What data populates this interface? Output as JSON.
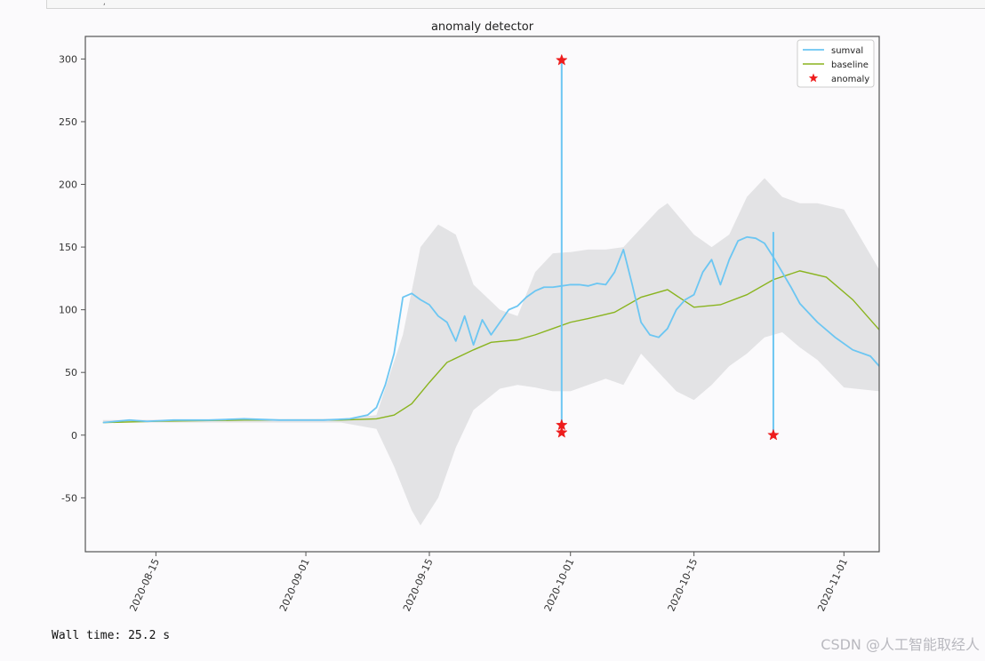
{
  "cell": {
    "output_marker": ","
  },
  "footer": {
    "wall_time": "Wall time: 25.2 s",
    "watermark": "CSDN @人工智能取经人"
  },
  "colors": {
    "series": "#6cc6f2",
    "baseline": "#8ab41f",
    "band": "#e3e3e5",
    "anomaly": "#ee1c1c",
    "axes": "#555555"
  },
  "chart_data": {
    "type": "line",
    "title": "anomaly detector",
    "xlabel": "",
    "ylabel": "",
    "xlim": [
      "2020-08-07",
      "2020-11-05"
    ],
    "ylim": [
      -93,
      318
    ],
    "x_ticks": [
      "2020-08-15",
      "2020-09-01",
      "2020-09-15",
      "2020-10-01",
      "2020-10-15",
      "2020-11-01"
    ],
    "y_ticks": [
      -50,
      0,
      50,
      100,
      150,
      200,
      250,
      300
    ],
    "grid": false,
    "legend": {
      "placement": "top-right",
      "entries": [
        "sumval",
        "baseline",
        "anomaly"
      ]
    },
    "series": [
      {
        "name": "sumval",
        "kind": "line",
        "x": [
          "2020-08-09",
          "2020-08-12",
          "2020-08-14",
          "2020-08-17",
          "2020-08-21",
          "2020-08-25",
          "2020-08-29",
          "2020-09-03",
          "2020-09-06",
          "2020-09-08",
          "2020-09-09",
          "2020-09-10",
          "2020-09-11",
          "2020-09-12",
          "2020-09-13",
          "2020-09-14",
          "2020-09-15",
          "2020-09-16",
          "2020-09-17",
          "2020-09-18",
          "2020-09-19",
          "2020-09-20",
          "2020-09-21",
          "2020-09-22",
          "2020-09-23",
          "2020-09-24",
          "2020-09-25",
          "2020-09-26",
          "2020-09-27",
          "2020-09-28",
          "2020-09-29",
          "2020-09-30",
          "2020-10-01",
          "2020-10-02",
          "2020-10-03",
          "2020-10-04",
          "2020-10-05",
          "2020-10-06",
          "2020-10-07",
          "2020-10-08",
          "2020-10-09",
          "2020-10-10",
          "2020-10-11",
          "2020-10-12",
          "2020-10-13",
          "2020-10-14",
          "2020-10-15",
          "2020-10-16",
          "2020-10-17",
          "2020-10-18",
          "2020-10-19",
          "2020-10-20",
          "2020-10-21",
          "2020-10-22",
          "2020-10-23",
          "2020-10-24",
          "2020-10-25",
          "2020-10-26",
          "2020-10-27",
          "2020-10-29",
          "2020-10-31",
          "2020-11-02",
          "2020-11-04",
          "2020-11-05"
        ],
        "y": [
          10,
          12,
          11,
          12,
          12,
          13,
          12,
          12,
          13,
          16,
          22,
          40,
          65,
          110,
          113,
          108,
          104,
          95,
          90,
          75,
          95,
          72,
          92,
          80,
          90,
          100,
          103,
          110,
          115,
          118,
          118,
          119,
          120,
          120,
          119,
          121,
          120,
          130,
          148,
          120,
          90,
          80,
          78,
          85,
          100,
          108,
          112,
          130,
          140,
          120,
          140,
          155,
          158,
          157,
          153,
          142,
          130,
          118,
          105,
          90,
          78,
          68,
          63,
          55
        ]
      },
      {
        "name": "baseline",
        "kind": "line",
        "x": [
          "2020-08-09",
          "2020-08-15",
          "2020-08-25",
          "2020-09-05",
          "2020-09-09",
          "2020-09-11",
          "2020-09-13",
          "2020-09-15",
          "2020-09-17",
          "2020-09-20",
          "2020-09-22",
          "2020-09-25",
          "2020-09-27",
          "2020-09-29",
          "2020-10-01",
          "2020-10-03",
          "2020-10-06",
          "2020-10-09",
          "2020-10-12",
          "2020-10-15",
          "2020-10-18",
          "2020-10-21",
          "2020-10-24",
          "2020-10-27",
          "2020-10-30",
          "2020-11-02",
          "2020-11-05"
        ],
        "y": [
          10,
          11,
          12,
          12,
          13,
          16,
          25,
          42,
          58,
          68,
          74,
          76,
          80,
          85,
          90,
          93,
          98,
          110,
          116,
          102,
          104,
          112,
          124,
          131,
          126,
          108,
          84
        ]
      },
      {
        "name": "upper_bound",
        "kind": "band-upper",
        "x": [
          "2020-08-09",
          "2020-09-05",
          "2020-09-09",
          "2020-09-12",
          "2020-09-14",
          "2020-09-16",
          "2020-09-18",
          "2020-09-20",
          "2020-09-23",
          "2020-09-25",
          "2020-09-27",
          "2020-09-29",
          "2020-10-01",
          "2020-10-03",
          "2020-10-05",
          "2020-10-07",
          "2020-10-09",
          "2020-10-11",
          "2020-10-12",
          "2020-10-15",
          "2020-10-17",
          "2020-10-19",
          "2020-10-21",
          "2020-10-23",
          "2020-10-25",
          "2020-10-27",
          "2020-10-29",
          "2020-11-01",
          "2020-11-05"
        ],
        "y": [
          12,
          13,
          16,
          80,
          150,
          168,
          160,
          120,
          100,
          95,
          130,
          145,
          146,
          148,
          148,
          150,
          165,
          180,
          185,
          160,
          150,
          160,
          190,
          205,
          190,
          185,
          185,
          180,
          132
        ]
      },
      {
        "name": "lower_bound",
        "kind": "band-lower",
        "x": [
          "2020-08-09",
          "2020-09-05",
          "2020-09-09",
          "2020-09-11",
          "2020-09-13",
          "2020-09-14",
          "2020-09-16",
          "2020-09-18",
          "2020-09-20",
          "2020-09-23",
          "2020-09-25",
          "2020-09-27",
          "2020-09-29",
          "2020-10-01",
          "2020-10-03",
          "2020-10-05",
          "2020-10-07",
          "2020-10-09",
          "2020-10-11",
          "2020-10-13",
          "2020-10-15",
          "2020-10-17",
          "2020-10-19",
          "2020-10-21",
          "2020-10-23",
          "2020-10-25",
          "2020-10-27",
          "2020-10-29",
          "2020-11-01",
          "2020-11-05"
        ],
        "y": [
          10,
          10,
          5,
          -25,
          -60,
          -72,
          -50,
          -10,
          20,
          37,
          40,
          38,
          35,
          35,
          40,
          45,
          40,
          65,
          50,
          35,
          28,
          40,
          55,
          65,
          78,
          82,
          70,
          60,
          38,
          35
        ]
      },
      {
        "name": "anomaly",
        "kind": "scatter",
        "marker": "star",
        "x": [
          "2020-09-30",
          "2020-09-30",
          "2020-09-30",
          "2020-10-24"
        ],
        "y": [
          299,
          8,
          2,
          0
        ]
      }
    ],
    "spikes": [
      {
        "x": "2020-09-30",
        "y_from": 2,
        "y_to": 299
      },
      {
        "x": "2020-10-24",
        "y_from": 0,
        "y_to": 162
      }
    ]
  }
}
